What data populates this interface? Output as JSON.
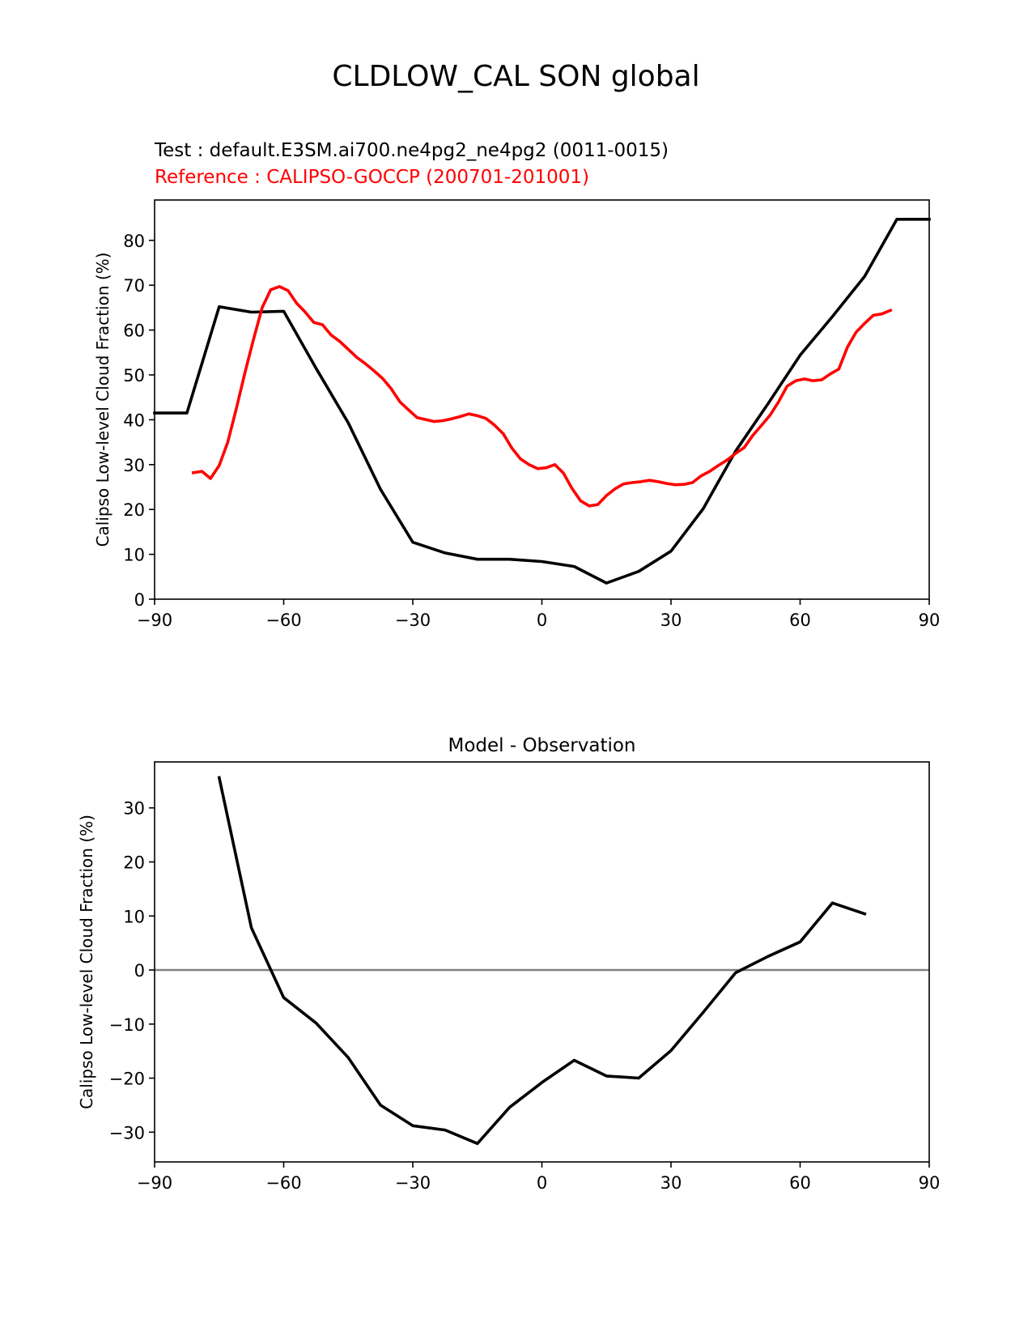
{
  "figure": {
    "title": "CLDLOW_CAL SON global",
    "test_label": "Test : default.E3SM.ai700.ne4pg2_ne4pg2 (0011-0015)",
    "reference_label": "Reference : CALIPSO-GOCCP (200701-201001)"
  },
  "chart_data": [
    {
      "type": "line",
      "title": "",
      "xlabel": "",
      "ylabel": "Calipso Low-level Cloud Fraction (%)",
      "xlim": [
        -90,
        90
      ],
      "ylim": [
        0,
        89
      ],
      "xticks": [
        -90,
        -60,
        -30,
        0,
        30,
        60,
        90
      ],
      "xtick_labels": [
        "−90",
        "−60",
        "−30",
        "0",
        "30",
        "60",
        "90"
      ],
      "yticks": [
        0,
        10,
        20,
        30,
        40,
        50,
        60,
        70,
        80
      ],
      "ytick_labels": [
        "0",
        "10",
        "20",
        "30",
        "40",
        "50",
        "60",
        "70",
        "80"
      ],
      "grid": false,
      "series": [
        {
          "name": "Test",
          "color": "#000000",
          "x": [
            -90,
            -82.5,
            -75,
            -67.5,
            -60,
            -52.5,
            -45,
            -37.5,
            -30,
            -22.5,
            -15,
            -7.5,
            0,
            7.5,
            15,
            22.5,
            30,
            37.5,
            45,
            52.5,
            60,
            67.5,
            75,
            82.5,
            90
          ],
          "y": [
            41.5,
            41.5,
            65.2,
            64.0,
            64.2,
            51.5,
            39.3,
            24.5,
            12.7,
            10.3,
            8.9,
            8.9,
            8.4,
            7.3,
            3.6,
            6.2,
            10.7,
            20.2,
            33.0,
            43.5,
            54.4,
            63.0,
            72.0,
            84.7,
            84.7
          ]
        },
        {
          "name": "Reference",
          "color": "#ff0000",
          "x": [
            -81,
            -79,
            -77,
            -75,
            -73,
            -71,
            -69,
            -67,
            -65,
            -63,
            -61,
            -59,
            -57,
            -55,
            -53,
            -51,
            -49,
            -47,
            -45,
            -43,
            -41,
            -39,
            -37,
            -35,
            -33,
            -31,
            -29,
            -25,
            -23,
            -21,
            -19,
            -17,
            -15,
            -13,
            -11,
            -9,
            -7,
            -5,
            -3,
            -1,
            1,
            3,
            5,
            7,
            9,
            11,
            13,
            15,
            17,
            19,
            21,
            23,
            25,
            27,
            29,
            31,
            33,
            35,
            37,
            39,
            41,
            43,
            45,
            47,
            49,
            51,
            53,
            55,
            57,
            59,
            61,
            63,
            65,
            67,
            69,
            71,
            73,
            75,
            77,
            79,
            81
          ],
          "y": [
            28.2,
            28.5,
            26.9,
            29.8,
            35.0,
            42.5,
            50.5,
            58.0,
            65.0,
            69.0,
            69.7,
            68.8,
            66.0,
            64.0,
            61.7,
            61.2,
            58.9,
            57.5,
            55.7,
            53.9,
            52.5,
            50.9,
            49.2,
            46.9,
            44.0,
            42.2,
            40.5,
            39.6,
            39.8,
            40.2,
            40.7,
            41.3,
            40.9,
            40.3,
            38.8,
            36.9,
            33.7,
            31.3,
            30.0,
            29.1,
            29.3,
            30.0,
            28.1,
            24.7,
            21.9,
            20.8,
            21.1,
            23.1,
            24.6,
            25.7,
            26.0,
            26.2,
            26.5,
            26.2,
            25.8,
            25.5,
            25.6,
            26.0,
            27.5,
            28.5,
            29.8,
            31.0,
            32.5,
            33.8,
            36.5,
            38.7,
            41.0,
            44.0,
            47.5,
            48.7,
            49.1,
            48.7,
            48.9,
            50.2,
            51.3,
            56.2,
            59.5,
            61.5,
            63.3,
            63.6,
            64.4
          ]
        }
      ]
    },
    {
      "type": "line",
      "title": "Model - Observation",
      "xlabel": "",
      "ylabel": "Calipso Low-level Cloud Fraction (%)",
      "xlim": [
        -90,
        90
      ],
      "ylim": [
        -35.5,
        38.5
      ],
      "xticks": [
        -90,
        -60,
        -30,
        0,
        30,
        60,
        90
      ],
      "xtick_labels": [
        "−90",
        "−60",
        "−30",
        "0",
        "30",
        "60",
        "90"
      ],
      "yticks": [
        -30,
        -20,
        -10,
        0,
        10,
        20,
        30
      ],
      "ytick_labels": [
        "−30",
        "−20",
        "−10",
        "0",
        "10",
        "20",
        "30"
      ],
      "grid": false,
      "zero_line": {
        "y": 0,
        "color": "#808080"
      },
      "series": [
        {
          "color": "#000000",
          "x": [
            -75,
            -67.5,
            -60,
            -52.5,
            -45,
            -37.5,
            -30,
            -22.5,
            -15,
            -7.5,
            0,
            7.5,
            15,
            22.5,
            30,
            37.5,
            45,
            52.5,
            60,
            67.5,
            75
          ],
          "y": [
            35.6,
            7.8,
            -5.1,
            -9.8,
            -16.2,
            -25.0,
            -28.8,
            -29.6,
            -32.1,
            -25.4,
            -20.8,
            -16.7,
            -19.6,
            -20.0,
            -14.9,
            -7.8,
            -0.5,
            2.5,
            5.2,
            12.4,
            10.4
          ]
        }
      ]
    }
  ]
}
